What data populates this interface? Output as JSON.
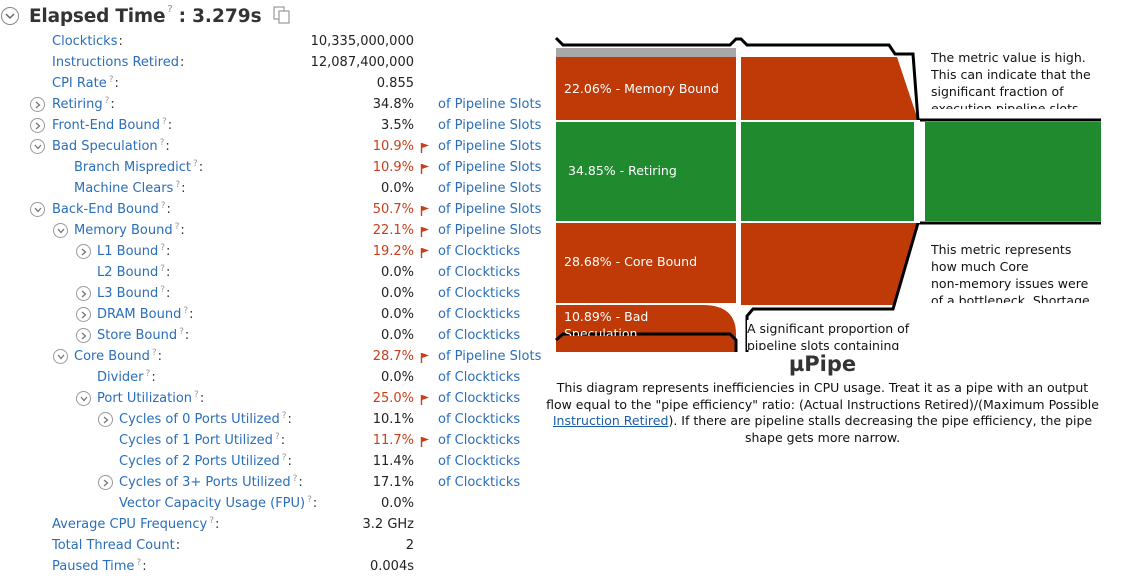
{
  "header": {
    "title": "Elapsed Time",
    "help": "?",
    "colon": ":",
    "value": "3.279s"
  },
  "metrics": [
    {
      "name": "Clockticks",
      "help": false,
      "value": "10,335,000,000",
      "unit": "",
      "flag": false,
      "toggle": "none",
      "indent": 0
    },
    {
      "name": "Instructions Retired",
      "help": false,
      "value": "12,087,400,000",
      "unit": "",
      "flag": false,
      "toggle": "none",
      "indent": 0
    },
    {
      "name": "CPI Rate",
      "help": true,
      "value": "0.855",
      "unit": "",
      "flag": false,
      "toggle": "none",
      "indent": 0
    },
    {
      "name": "Retiring",
      "help": true,
      "value": "34.8%",
      "unit": "of Pipeline Slots",
      "flag": false,
      "toggle": "collapsed",
      "indent": 0
    },
    {
      "name": "Front-End Bound",
      "help": true,
      "value": "3.5%",
      "unit": "of Pipeline Slots",
      "flag": false,
      "toggle": "collapsed",
      "indent": 0
    },
    {
      "name": "Bad Speculation",
      "help": true,
      "value": "10.9%",
      "unit": "of Pipeline Slots",
      "flag": true,
      "toggle": "expanded",
      "indent": 0
    },
    {
      "name": "Branch Mispredict",
      "help": true,
      "value": "10.9%",
      "unit": "of Pipeline Slots",
      "flag": true,
      "toggle": "none",
      "indent": 1
    },
    {
      "name": "Machine Clears",
      "help": true,
      "value": "0.0%",
      "unit": "of Pipeline Slots",
      "flag": false,
      "toggle": "none",
      "indent": 1
    },
    {
      "name": "Back-End Bound",
      "help": true,
      "value": "50.7%",
      "unit": "of Pipeline Slots",
      "flag": true,
      "toggle": "expanded",
      "indent": 0
    },
    {
      "name": "Memory Bound",
      "help": true,
      "value": "22.1%",
      "unit": "of Pipeline Slots",
      "flag": true,
      "toggle": "expanded",
      "indent": 1
    },
    {
      "name": "L1 Bound",
      "help": true,
      "value": "19.2%",
      "unit": "of Clockticks",
      "flag": true,
      "toggle": "collapsed",
      "indent": 2
    },
    {
      "name": "L2 Bound",
      "help": true,
      "value": "0.0%",
      "unit": "of Clockticks",
      "flag": false,
      "toggle": "none",
      "indent": 2
    },
    {
      "name": "L3 Bound",
      "help": true,
      "value": "0.0%",
      "unit": "of Clockticks",
      "flag": false,
      "toggle": "collapsed",
      "indent": 2
    },
    {
      "name": "DRAM Bound",
      "help": true,
      "value": "0.0%",
      "unit": "of Clockticks",
      "flag": false,
      "toggle": "collapsed",
      "indent": 2
    },
    {
      "name": "Store Bound",
      "help": true,
      "value": "0.0%",
      "unit": "of Clockticks",
      "flag": false,
      "toggle": "collapsed",
      "indent": 2
    },
    {
      "name": "Core Bound",
      "help": true,
      "value": "28.7%",
      "unit": "of Pipeline Slots",
      "flag": true,
      "toggle": "expanded",
      "indent": 1
    },
    {
      "name": "Divider",
      "help": true,
      "value": "0.0%",
      "unit": "of Clockticks",
      "flag": false,
      "toggle": "none",
      "indent": 2
    },
    {
      "name": "Port Utilization",
      "help": true,
      "value": "25.0%",
      "unit": "of Clockticks",
      "flag": true,
      "toggle": "expanded",
      "indent": 2
    },
    {
      "name": "Cycles of 0 Ports Utilized",
      "help": true,
      "value": "10.1%",
      "unit": "of Clockticks",
      "flag": false,
      "toggle": "collapsed",
      "indent": 3
    },
    {
      "name": "Cycles of 1 Port Utilized",
      "help": true,
      "value": "11.7%",
      "unit": "of Clockticks",
      "flag": true,
      "toggle": "none",
      "indent": 3
    },
    {
      "name": "Cycles of 2 Ports Utilized",
      "help": true,
      "value": "11.4%",
      "unit": "of Clockticks",
      "flag": false,
      "toggle": "none",
      "indent": 3
    },
    {
      "name": "Cycles of 3+ Ports Utilized",
      "help": true,
      "value": "17.1%",
      "unit": "of Clockticks",
      "flag": false,
      "toggle": "collapsed",
      "indent": 3
    },
    {
      "name": "Vector Capacity Usage (FPU)",
      "help": true,
      "value": "0.0%",
      "unit": "",
      "flag": false,
      "toggle": "none",
      "indent": 3
    },
    {
      "name": "Average CPU Frequency",
      "help": true,
      "value": "3.2 GHz",
      "unit": "",
      "flag": false,
      "toggle": "none",
      "indent": 0
    },
    {
      "name": "Total Thread Count",
      "help": false,
      "value": "2",
      "unit": "",
      "flag": false,
      "toggle": "none",
      "indent": 0
    },
    {
      "name": "Paused Time",
      "help": true,
      "value": "0.004s",
      "unit": "",
      "flag": false,
      "toggle": "none",
      "indent": 0
    }
  ],
  "pipe": {
    "segments": {
      "memory_bound": "22.06% - Memory Bound",
      "retiring": "34.85% - Retiring",
      "core_bound": "28.68% - Core Bound",
      "bad_spec_line1": "10.89% - Bad",
      "bad_spec_line2": "Speculation"
    },
    "tooltips": {
      "retiring": [
        "The metric value is high.",
        "This can indicate that the",
        "significant fraction of",
        "execution pipeline slots"
      ],
      "core_bound": [
        "This metric represents",
        "how much Core",
        "non-memory issues were",
        "of a bottleneck. Shortage"
      ],
      "bad_spec": [
        "A significant proportion of",
        "pipeline slots containing"
      ]
    },
    "colors": {
      "bound": "#c03a08",
      "retiring": "#1f8a2e",
      "frontend": "#a8a8a8",
      "outline": "#000000"
    }
  },
  "caption": {
    "title": "µPipe",
    "text_before": "This diagram represents inefficiencies in CPU usage. Treat it as a pipe with an output flow equal to the \"pipe efficiency\" ratio: (Actual Instructions Retired)/(Maximum Possible ",
    "link": "Instruction Retired",
    "text_after": "). If there are pipeline stalls decreasing the pipe efficiency, the pipe shape gets more narrow."
  }
}
